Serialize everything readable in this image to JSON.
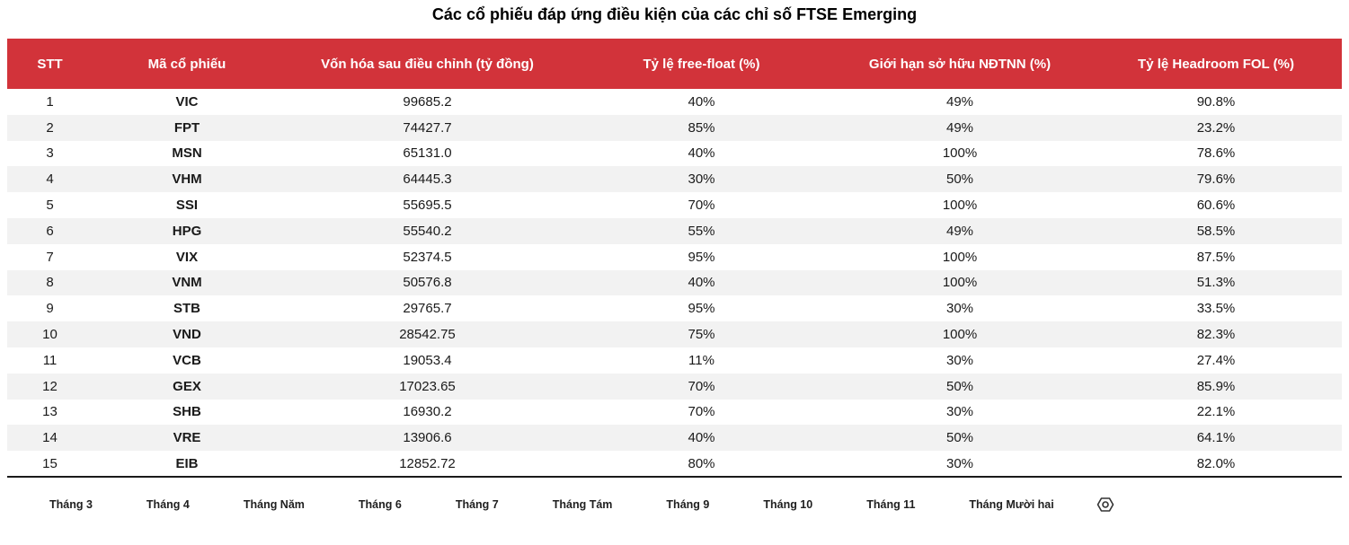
{
  "title": "Các cổ phiếu đáp ứng điều kiện của các chỉ số FTSE Emerging",
  "colors": {
    "header_bg": "#d2333a",
    "stripe": "#f2f2f2",
    "header_text": "#ffffff",
    "bottom_border": "#1a1a1a"
  },
  "table": {
    "columns": [
      "STT",
      "Mã cổ phiếu",
      "Vốn hóa sau điều chỉnh (tỷ đồng)",
      "Tỷ lệ free-float (%)",
      "Giới hạn sở hữu NĐTNN (%)",
      "Tỷ lệ Headroom FOL (%)"
    ],
    "rows": [
      {
        "stt": "1",
        "code": "VIC",
        "cap": "99685.2",
        "freefloat": "40%",
        "fol": "49%",
        "headroom": "90.8%"
      },
      {
        "stt": "2",
        "code": "FPT",
        "cap": "74427.7",
        "freefloat": "85%",
        "fol": "49%",
        "headroom": "23.2%"
      },
      {
        "stt": "3",
        "code": "MSN",
        "cap": "65131.0",
        "freefloat": "40%",
        "fol": "100%",
        "headroom": "78.6%"
      },
      {
        "stt": "4",
        "code": "VHM",
        "cap": "64445.3",
        "freefloat": "30%",
        "fol": "50%",
        "headroom": "79.6%"
      },
      {
        "stt": "5",
        "code": "SSI",
        "cap": "55695.5",
        "freefloat": "70%",
        "fol": "100%",
        "headroom": "60.6%"
      },
      {
        "stt": "6",
        "code": "HPG",
        "cap": "55540.2",
        "freefloat": "55%",
        "fol": "49%",
        "headroom": "58.5%"
      },
      {
        "stt": "7",
        "code": "VIX",
        "cap": "52374.5",
        "freefloat": "95%",
        "fol": "100%",
        "headroom": "87.5%"
      },
      {
        "stt": "8",
        "code": "VNM",
        "cap": "50576.8",
        "freefloat": "40%",
        "fol": "100%",
        "headroom": "51.3%"
      },
      {
        "stt": "9",
        "code": "STB",
        "cap": "29765.7",
        "freefloat": "95%",
        "fol": "30%",
        "headroom": "33.5%"
      },
      {
        "stt": "10",
        "code": "VND",
        "cap": "28542.75",
        "freefloat": "75%",
        "fol": "100%",
        "headroom": "82.3%"
      },
      {
        "stt": "11",
        "code": "VCB",
        "cap": "19053.4",
        "freefloat": "11%",
        "fol": "30%",
        "headroom": "27.4%"
      },
      {
        "stt": "12",
        "code": "GEX",
        "cap": "17023.65",
        "freefloat": "70%",
        "fol": "50%",
        "headroom": "85.9%"
      },
      {
        "stt": "13",
        "code": "SHB",
        "cap": "16930.2",
        "freefloat": "70%",
        "fol": "30%",
        "headroom": "22.1%"
      },
      {
        "stt": "14",
        "code": "VRE",
        "cap": "13906.6",
        "freefloat": "40%",
        "fol": "50%",
        "headroom": "64.1%"
      },
      {
        "stt": "15",
        "code": "EIB",
        "cap": "12852.72",
        "freefloat": "80%",
        "fol": "30%",
        "headroom": "82.0%"
      }
    ]
  },
  "sheet_tabs": [
    "Tháng 3",
    "Tháng 4",
    "Tháng Năm",
    "Tháng 6",
    "Tháng 7",
    "Tháng Tám",
    "Tháng 9",
    "Tháng 10",
    "Tháng 11",
    "Tháng Mười hai"
  ],
  "icons": {
    "tabbar_icon": "nut-settings-icon"
  }
}
